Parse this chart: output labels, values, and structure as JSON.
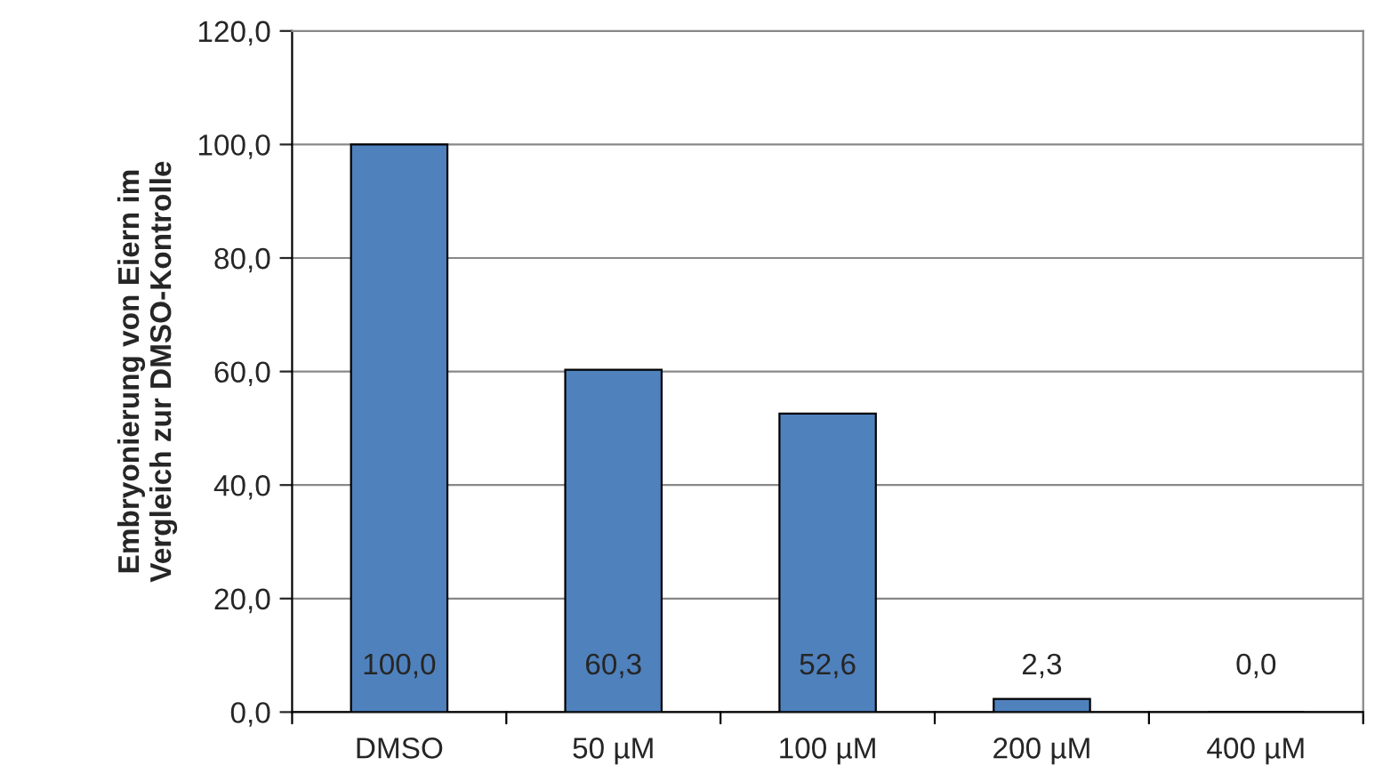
{
  "chart_data": {
    "type": "bar",
    "ylabel": "Embryonierung von Eiern im\nVergleich zur DMSO-Kontrolle",
    "categories": [
      "DMSO",
      "50 µM",
      "100 µM",
      "200 µM",
      "400 µM"
    ],
    "values": [
      100.0,
      60.3,
      52.6,
      2.3,
      0.0
    ],
    "value_labels": [
      "100,0",
      "60,3",
      "52,6",
      "2,3",
      "0,0"
    ],
    "color": "#4f81bd",
    "ylim": [
      0,
      120
    ],
    "yticks": [
      {
        "value": 0,
        "label": "0,0"
      },
      {
        "value": 20,
        "label": "20,0"
      },
      {
        "value": 40,
        "label": "40,0"
      },
      {
        "value": 60,
        "label": "60,0"
      },
      {
        "value": 80,
        "label": "80,0"
      },
      {
        "value": 100,
        "label": "100,0"
      },
      {
        "value": 120,
        "label": "120,0"
      }
    ],
    "grid": "y",
    "legend": false
  }
}
